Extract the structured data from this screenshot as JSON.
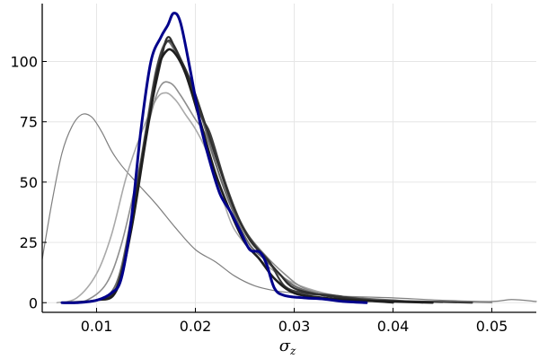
{
  "chart_data": {
    "type": "line",
    "title": "",
    "xlabel": {
      "symbol": "σ",
      "subscript": "z"
    },
    "ylabel": "",
    "xlim": [
      0.0045,
      0.0545
    ],
    "ylim": [
      -4,
      124
    ],
    "x_ticks": [
      0.01,
      0.02,
      0.03,
      0.04,
      0.05
    ],
    "x_tick_labels": [
      "0.01",
      "0.02",
      "0.03",
      "0.04",
      "0.05"
    ],
    "y_ticks": [
      0,
      25,
      50,
      75,
      100
    ],
    "y_tick_labels": [
      "0",
      "25",
      "50",
      "75",
      "100"
    ],
    "grid": true,
    "legend": "none",
    "series": [
      {
        "color": "#7f7f7f",
        "width": 1.2,
        "points": [
          [
            0.0045,
            18
          ],
          [
            0.0055,
            42
          ],
          [
            0.0065,
            62
          ],
          [
            0.0075,
            73
          ],
          [
            0.0085,
            78
          ],
          [
            0.0095,
            77
          ],
          [
            0.0105,
            71
          ],
          [
            0.0115,
            63
          ],
          [
            0.0125,
            57
          ],
          [
            0.014,
            50
          ],
          [
            0.016,
            41
          ],
          [
            0.018,
            31
          ],
          [
            0.02,
            22
          ],
          [
            0.022,
            17
          ],
          [
            0.024,
            11
          ],
          [
            0.026,
            7
          ],
          [
            0.028,
            5
          ],
          [
            0.03,
            4
          ],
          [
            0.033,
            3
          ],
          [
            0.036,
            2.5
          ],
          [
            0.04,
            2
          ],
          [
            0.045,
            1
          ],
          [
            0.05,
            0.5
          ],
          [
            0.052,
            1.3
          ],
          [
            0.0545,
            0.5
          ]
        ]
      },
      {
        "color": "#a9a9a9",
        "width": 1.6,
        "points": [
          [
            0.006,
            0
          ],
          [
            0.008,
            2
          ],
          [
            0.01,
            12
          ],
          [
            0.0115,
            28
          ],
          [
            0.013,
            52
          ],
          [
            0.0145,
            70
          ],
          [
            0.016,
            84
          ],
          [
            0.017,
            87
          ],
          [
            0.018,
            84
          ],
          [
            0.019,
            78
          ],
          [
            0.02,
            72
          ],
          [
            0.021,
            64
          ],
          [
            0.022,
            52
          ],
          [
            0.023,
            40
          ],
          [
            0.024,
            30
          ],
          [
            0.026,
            20
          ],
          [
            0.028,
            13
          ],
          [
            0.03,
            8
          ],
          [
            0.033,
            4
          ],
          [
            0.036,
            2
          ],
          [
            0.04,
            1
          ],
          [
            0.045,
            0
          ]
        ]
      },
      {
        "color": "#8e8e8e",
        "width": 1.6,
        "points": [
          [
            0.007,
            0
          ],
          [
            0.009,
            1
          ],
          [
            0.011,
            8
          ],
          [
            0.0125,
            24
          ],
          [
            0.014,
            50
          ],
          [
            0.0155,
            78
          ],
          [
            0.0165,
            90
          ],
          [
            0.0175,
            91
          ],
          [
            0.0185,
            86
          ],
          [
            0.02,
            76
          ],
          [
            0.021,
            70
          ],
          [
            0.022,
            58
          ],
          [
            0.0235,
            42
          ],
          [
            0.025,
            30
          ],
          [
            0.027,
            20
          ],
          [
            0.029,
            12
          ],
          [
            0.031,
            6
          ],
          [
            0.034,
            3
          ],
          [
            0.038,
            1
          ],
          [
            0.045,
            0.5
          ],
          [
            0.05,
            0
          ]
        ]
      },
      {
        "color": "#6a6a6a",
        "width": 2.0,
        "points": [
          [
            0.007,
            0
          ],
          [
            0.01,
            1
          ],
          [
            0.012,
            8
          ],
          [
            0.0135,
            35
          ],
          [
            0.015,
            72
          ],
          [
            0.016,
            96
          ],
          [
            0.017,
            108
          ],
          [
            0.018,
            104
          ],
          [
            0.0195,
            92
          ],
          [
            0.021,
            72
          ],
          [
            0.0225,
            52
          ],
          [
            0.024,
            36
          ],
          [
            0.0255,
            24
          ],
          [
            0.027,
            18
          ],
          [
            0.028,
            14
          ],
          [
            0.03,
            7
          ],
          [
            0.033,
            3
          ],
          [
            0.036,
            2
          ],
          [
            0.04,
            1
          ],
          [
            0.043,
            0
          ]
        ]
      },
      {
        "color": "#3c3c3c",
        "width": 2.2,
        "points": [
          [
            0.007,
            0
          ],
          [
            0.01,
            1
          ],
          [
            0.012,
            6
          ],
          [
            0.0135,
            32
          ],
          [
            0.015,
            70
          ],
          [
            0.016,
            95
          ],
          [
            0.0168,
            106
          ],
          [
            0.0176,
            108
          ],
          [
            0.019,
            96
          ],
          [
            0.0205,
            78
          ],
          [
            0.0215,
            70
          ],
          [
            0.023,
            50
          ],
          [
            0.0245,
            34
          ],
          [
            0.026,
            24
          ],
          [
            0.0275,
            17
          ],
          [
            0.029,
            7
          ],
          [
            0.031,
            4
          ],
          [
            0.034,
            3
          ],
          [
            0.038,
            1
          ],
          [
            0.045,
            0.3
          ],
          [
            0.048,
            0
          ]
        ]
      },
      {
        "color": "#2f2f2f",
        "width": 2.2,
        "points": [
          [
            0.007,
            0
          ],
          [
            0.01,
            1
          ],
          [
            0.012,
            6
          ],
          [
            0.0135,
            33
          ],
          [
            0.015,
            70
          ],
          [
            0.0165,
            100
          ],
          [
            0.0172,
            110
          ],
          [
            0.018,
            105
          ],
          [
            0.0195,
            92
          ],
          [
            0.021,
            74
          ],
          [
            0.0225,
            55
          ],
          [
            0.024,
            38
          ],
          [
            0.0255,
            26
          ],
          [
            0.027,
            19
          ],
          [
            0.0285,
            12
          ],
          [
            0.03,
            6
          ],
          [
            0.033,
            3
          ],
          [
            0.037,
            1
          ],
          [
            0.04,
            0
          ]
        ]
      },
      {
        "color": "#1e1e1e",
        "width": 2.6,
        "points": [
          [
            0.007,
            0
          ],
          [
            0.01,
            1
          ],
          [
            0.012,
            5
          ],
          [
            0.0135,
            30
          ],
          [
            0.015,
            68
          ],
          [
            0.0162,
            96
          ],
          [
            0.017,
            104
          ],
          [
            0.0178,
            104
          ],
          [
            0.019,
            95
          ],
          [
            0.0205,
            75
          ],
          [
            0.022,
            54
          ],
          [
            0.0235,
            38
          ],
          [
            0.025,
            25
          ],
          [
            0.0265,
            18
          ],
          [
            0.028,
            10
          ],
          [
            0.03,
            4
          ],
          [
            0.033,
            2
          ],
          [
            0.036,
            1
          ],
          [
            0.04,
            0.5
          ],
          [
            0.044,
            0
          ]
        ]
      },
      {
        "color": "#00008b",
        "width": 3.0,
        "points": [
          [
            0.0065,
            0
          ],
          [
            0.008,
            0
          ],
          [
            0.01,
            1
          ],
          [
            0.0115,
            4
          ],
          [
            0.0125,
            10
          ],
          [
            0.0135,
            34
          ],
          [
            0.0145,
            72
          ],
          [
            0.0155,
            100
          ],
          [
            0.0165,
            110
          ],
          [
            0.0172,
            115
          ],
          [
            0.0178,
            120
          ],
          [
            0.0185,
            116
          ],
          [
            0.0195,
            96
          ],
          [
            0.0205,
            74
          ],
          [
            0.0215,
            58
          ],
          [
            0.0225,
            45
          ],
          [
            0.0235,
            38
          ],
          [
            0.0245,
            30
          ],
          [
            0.0255,
            22
          ],
          [
            0.0265,
            21
          ],
          [
            0.0272,
            16
          ],
          [
            0.028,
            6
          ],
          [
            0.029,
            3
          ],
          [
            0.031,
            2
          ],
          [
            0.033,
            1.5
          ],
          [
            0.035,
            0.5
          ],
          [
            0.0373,
            0
          ]
        ]
      }
    ]
  }
}
